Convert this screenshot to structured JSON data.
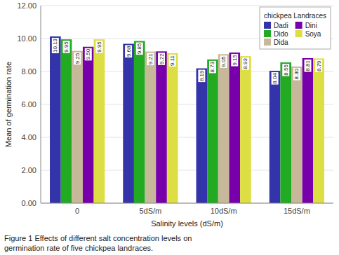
{
  "chart_data": {
    "type": "bar",
    "title": "chickpea Landraces",
    "xlabel": "Salinity levels (dS/m)",
    "ylabel": "Mean of germination rate",
    "annotations": [
      "Figure 1 Effects of different salt concentration levels on\ngermination rate of five chickpea landraces."
    ],
    "categories": [
      "0",
      "5dS/m",
      "10dS/m",
      "15dS/m"
    ],
    "series": [
      {
        "name": "Dadi",
        "color": "#3333aa",
        "values": [
          10.13,
          9.68,
          8.19,
          8.04
        ],
        "value_labels": [
          "10.13",
          "9.68",
          "8.19",
          "8.04"
        ]
      },
      {
        "name": "Dido",
        "color": "#22aa22",
        "values": [
          9.95,
          9.85,
          8.73,
          8.55
        ],
        "value_labels": [
          "9.95",
          "9.85",
          "8.73",
          "8.55"
        ]
      },
      {
        "name": "Dida",
        "color": "#c8b89a",
        "values": [
          9.25,
          9.21,
          9.05,
          8.3
        ],
        "value_labels": [
          "9.25",
          "9.21",
          "9.05",
          "8.30"
        ]
      },
      {
        "name": "Dini",
        "color": "#7700aa",
        "values": [
          9.5,
          9.22,
          9.15,
          8.81
        ],
        "value_labels": [
          "9.50",
          "9.22",
          "9.15",
          "8.81"
        ]
      },
      {
        "name": "Soya",
        "color": "#dddd44",
        "values": [
          9.95,
          9.11,
          8.93,
          8.79
        ],
        "value_labels": [
          "9.95",
          "9.11",
          "8.93",
          "8.79"
        ]
      }
    ],
    "ylim": [
      0,
      12
    ],
    "yticks": [
      {
        "value": 0,
        "label": "0.00"
      },
      {
        "value": 2,
        "label": "2.00"
      },
      {
        "value": 4,
        "label": "4.00"
      },
      {
        "value": 6,
        "label": "6.00"
      },
      {
        "value": 8,
        "label": "8.00"
      },
      {
        "value": 10,
        "label": "10.00"
      },
      {
        "value": 12,
        "label": "12.00"
      }
    ],
    "grid": true,
    "legend": "upper right",
    "data_labels": true
  }
}
